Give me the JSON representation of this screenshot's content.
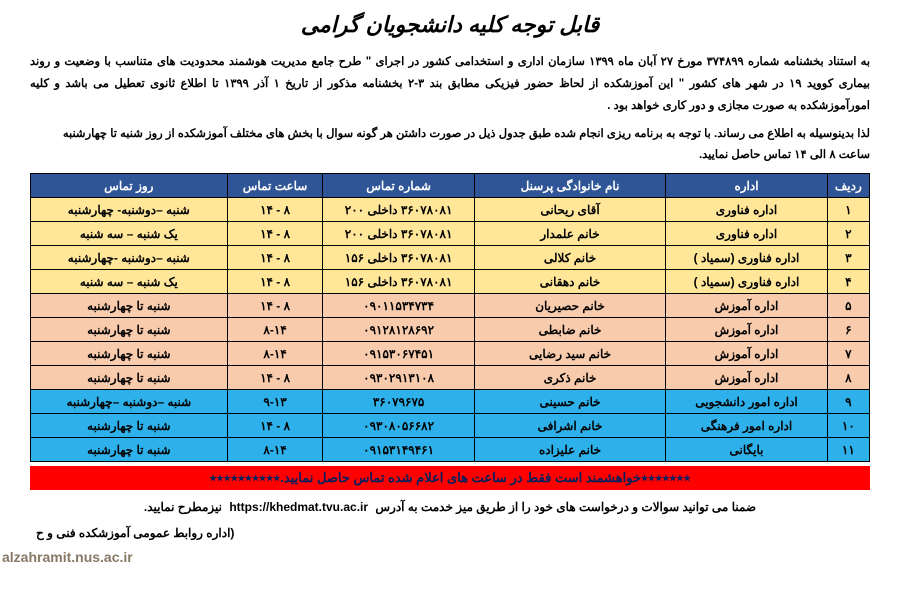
{
  "title": "قابل توجه کلیه دانشجویان گرامی",
  "para1": "به استناد بخشنامه شماره ۳۷۴۸۹۹ مورخ ۲۷ آبان ماه ۱۳۹۹ سازمان اداری و استخدامی کشور در اجرای \" طرح جامع مدیریت هوشمند محدودیت های متناسب با وضعیت و روند بیماری کووید ۱۹ در شهر های کشور \" این آموزشکده از لحاظ حضور فیزیکی مطابق بند ۳-۲ بخشنامه مذکور  از تاریخ ۱ آذر ۱۳۹۹ تا اطلاع ثانوی تعطیل می باشد و کلیه امورآموزشکده به صورت مجازی و دور کاری خواهد بود .",
  "para2": "لذا بدینوسیله به اطلاع می رساند. با توجه به برنامه ریزی انجام شده طبق جدول ذیل در صورت داشتن هر گونه سوال با بخش های مختلف آموزشکده از روز شنبه تا چهارشنبه  ساعت ۸ الی ۱۴ تماس حاصل نمایید.",
  "table": {
    "header_bg": "#2f5597",
    "header_fg": "#ffffff",
    "columns": [
      "ردیف",
      "اداره",
      "نام خانوادگی پرسنل",
      "شماره تماس",
      "ساعت تماس",
      "روز تماس"
    ],
    "groups": [
      {
        "color": "#ffe699",
        "rows": [
          {
            "n": "۱",
            "dept": "اداره فناوری",
            "name": "آقای ریحانی",
            "phone": "۳۶۰۷۸۰۸۱ داخلی ۲۰۰",
            "hours": "۸ - ۱۴",
            "days": "شنبه –دوشنبه- چهارشنبه"
          },
          {
            "n": "۲",
            "dept": "اداره فناوری",
            "name": "خانم علمدار",
            "phone": "۳۶۰۷۸۰۸۱ داخلی ۲۰۰",
            "hours": "۸ - ۱۴",
            "days": "یک شنبه – سه شنبه"
          },
          {
            "n": "۳",
            "dept": "اداره فناوری (سمیاد )",
            "name": "خانم کلالی",
            "phone": "۳۶۰۷۸۰۸۱ داخلی ۱۵۶",
            "hours": "۸ - ۱۴",
            "days": "شنبه –دوشنبه -چهارشنبه"
          },
          {
            "n": "۴",
            "dept": "اداره فناوری (سمیاد )",
            "name": "خانم دهقانی",
            "phone": "۳۶۰۷۸۰۸۱ داخلی ۱۵۶",
            "hours": "۸ - ۱۴",
            "days": "یک شنبه – سه شنبه"
          }
        ]
      },
      {
        "color": "#f8cbad",
        "rows": [
          {
            "n": "۵",
            "dept": "اداره آموزش",
            "name": "خانم حصیریان",
            "phone": "۰۹۰۱۱۵۳۴۷۳۴",
            "hours": "۸ - ۱۴",
            "days": "شنبه تا چهارشنبه"
          },
          {
            "n": "۶",
            "dept": "اداره آموزش",
            "name": "خانم ضابطی",
            "phone": "۰۹۱۲۸۱۲۸۶۹۲",
            "hours": "۸-۱۴",
            "days": "شنبه تا چهارشنبه"
          },
          {
            "n": "۷",
            "dept": "اداره آموزش",
            "name": "خانم سید رضایی",
            "phone": "۰۹۱۵۳۰۶۷۴۵۱",
            "hours": "۸-۱۴",
            "days": "شنبه تا چهارشنبه"
          },
          {
            "n": "۸",
            "dept": "اداره آموزش",
            "name": "خانم ذکری",
            "phone": "۰۹۳۰۲۹۱۳۱۰۸",
            "hours": "۸ - ۱۴",
            "days": "شنبه تا چهارشنبه"
          }
        ]
      },
      {
        "color": "#2eb0ea",
        "rows": [
          {
            "n": "۹",
            "dept": "اداره امور دانشجویی",
            "name": "خانم حسینی",
            "phone": "۳۶۰۷۹۶۷۵",
            "hours": "۹-۱۳",
            "days": "شنبه –دوشنبه –چهارشنبه"
          },
          {
            "n": "۱۰",
            "dept": "اداره امور فرهنگی",
            "name": "خانم اشرافی",
            "phone": "۰۹۳۰۸۰۵۶۶۸۲",
            "hours": "۸ - ۱۴",
            "days": "شنبه تا چهارشنبه"
          },
          {
            "n": "۱۱",
            "dept": "بایگانی",
            "name": "خانم علیزاده",
            "phone": "۰۹۱۵۳۱۴۹۴۶۱",
            "hours": "۸-۱۴",
            "days": "شنبه تا چهارشنبه"
          }
        ]
      }
    ]
  },
  "notice": {
    "bg": "#ff0000",
    "fg": "#002060",
    "text": "٭٭٭٭٭٭٭خواهشمند است فقط در ساعت های اعلام شده تماس حاصل نمایید.٭٭٭٭٭٭٭٭٭٭"
  },
  "footer": {
    "pre": "ضمنا می توانید سوالات و درخواست های خود را از طریق میز خدمت به آدرس",
    "url": "https://khedmat.tvu.ac.ir",
    "post": "  نیزمطرح نمایید."
  },
  "signature": "(اداره روابط عمومی آموزشکده فنی و ح",
  "watermark": "alzahramit.nus.ac.ir"
}
